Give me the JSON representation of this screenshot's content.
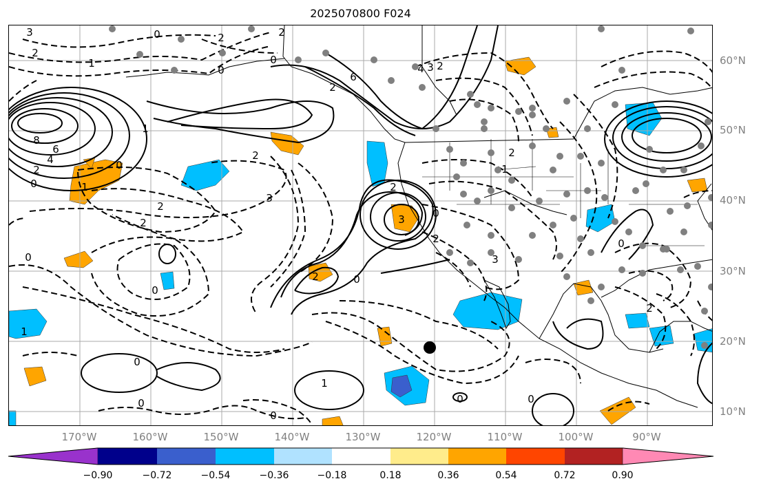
{
  "title": "2025070800 F024",
  "lat_labels": [
    "60°N",
    "50°N",
    "40°N",
    "30°N",
    "20°N",
    "10°N"
  ],
  "lon_labels": [
    "170°W",
    "160°W",
    "150°W",
    "140°W",
    "130°W",
    "120°W",
    "110°W",
    "100°W",
    "90°W"
  ],
  "colorbar": {
    "ticks": [
      "−0.90",
      "−0.72",
      "−0.54",
      "−0.36",
      "−0.18",
      "0.18",
      "0.36",
      "0.54",
      "0.72",
      "0.90"
    ],
    "colors": [
      "#9932cc",
      "#00008b",
      "#3a5fcd",
      "#00bfff",
      "#b0e2ff",
      "#ffffff",
      "#ffec8b",
      "#ffa500",
      "#ff4500",
      "#b22222",
      "#ff89b4"
    ]
  },
  "contour_labels": [
    "3",
    "2",
    "0",
    "2",
    "2",
    "1",
    "0",
    "4",
    "3",
    "2",
    "0",
    "6",
    "2",
    "1",
    "8",
    "6",
    "4",
    "2",
    "0",
    "1",
    "0",
    "2",
    "2",
    "3",
    "2",
    "2",
    "1",
    "2",
    "3",
    "2",
    "0",
    "2",
    "3",
    "0",
    "2",
    "0",
    "1",
    "0",
    "0",
    "0",
    "1",
    "0",
    "0",
    "0",
    "0"
  ]
}
